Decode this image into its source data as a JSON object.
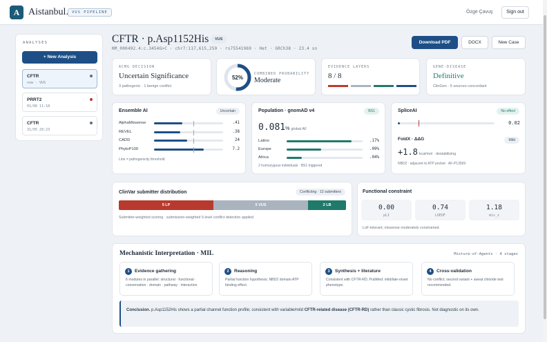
{
  "app": {
    "brand": "Aistanbul.",
    "logo_letter": "A",
    "pipeline_tag": "VUS PIPELINE",
    "user": "Özge Çavuş",
    "signout": "Sign out"
  },
  "sidebar": {
    "title": "ANALYSES",
    "new_button": "+ New Analysis",
    "items": [
      {
        "name": "CFTR",
        "meta": "now · VUS",
        "dot_color": "#5f6f80",
        "active": true
      },
      {
        "name": "PRRT2",
        "meta": "01/06 11:18",
        "dot_color": "#c0392b",
        "active": false
      },
      {
        "name": "CFTR",
        "meta": "31/05 20:23",
        "dot_color": "#5f6f80",
        "active": false
      }
    ]
  },
  "header": {
    "title": "CFTR · p.Asp1152His",
    "badge": "VUS",
    "subtitle": "NM_000492.4:c.3454G>C · chr7:117,615,259 · rs75541969 · Het · GRCh38 · 23.4 sn",
    "buttons": {
      "download_pdf": "Download PDF",
      "docx": "DOCX",
      "new_case": "New Case"
    }
  },
  "summary": {
    "acmg": {
      "label": "ACMG DECISION",
      "value": "Uncertain Significance",
      "note": "3 pathogenic · 1 benign conflict"
    },
    "combined": {
      "percent": 52,
      "percent_label": "52%",
      "label": "COMBINED PROBABILITY",
      "value": "Moderate"
    },
    "evidence": {
      "label": "EVIDENCE LAYERS",
      "value": "8 / 8",
      "segments": [
        "#c0392b",
        "#a9b4bf",
        "#1f7a6b",
        "#1d4f86"
      ]
    },
    "gene_disease": {
      "label": "GENE-DISEASE",
      "value": "Definitive",
      "note": "ClinGen · 5 sources concordant"
    }
  },
  "ensemble": {
    "title": "Ensemble AI",
    "badge": "Uncertain",
    "rows": [
      {
        "name": "AlphaMissense",
        "value": ".41",
        "fill": 0.41
      },
      {
        "name": "REVEL",
        "value": ".38",
        "fill": 0.38
      },
      {
        "name": "CADD",
        "value": "24",
        "fill": 0.48
      },
      {
        "name": "PhyloP100",
        "value": "7.2",
        "fill": 0.72
      }
    ],
    "note": "Line = pathogenicity threshold"
  },
  "population": {
    "title": "Population · gnomAD v4",
    "badge": "BS1",
    "af": "0.081",
    "af_unit": "%",
    "af_label": "global AF",
    "rows": [
      {
        "name": "Latino",
        "value": ".17%",
        "fill": 0.85
      },
      {
        "name": "Europe",
        "value": ".09%",
        "fill": 0.45
      },
      {
        "name": "Africa",
        "value": ".04%",
        "fill": 0.2
      }
    ],
    "note": "2 homozygous individuals · BS1 triggered"
  },
  "splice": {
    "title": "SpliceAI",
    "badge": "No effect",
    "value": "0.02",
    "fill": 0.02,
    "foldx_title": "FoldX · ΔΔG",
    "foldx_badge": "Mild",
    "ddg": "+1.8",
    "ddg_unit": "kcal/mol · destabilizing",
    "ddg_note": "NBD2 · adjacent to ATP pocket · AF-P13569"
  },
  "clinvar": {
    "title": "ClinVar submitter distribution",
    "badge": "Conflicting · 12 submitters",
    "segments": [
      {
        "label": "5 LP",
        "value": 5,
        "color": "#b83a2e"
      },
      {
        "label": "5 VUS",
        "value": 5,
        "color": "#a9b4bf"
      },
      {
        "label": "2 LB",
        "value": 2,
        "color": "#1f7a6b"
      }
    ],
    "note": "Submitter-weighted scoring · submission-weighted 5-level conflict detection applied."
  },
  "constraint": {
    "title": "Functional constraint",
    "stats": [
      {
        "value": "0.00",
        "label": "pLI"
      },
      {
        "value": "0.74",
        "label": "LOEUF"
      },
      {
        "value": "1.18",
        "label": "mis_z"
      }
    ],
    "note": "LoF-tolerant; missense moderately constrained."
  },
  "mechanistic": {
    "title": "Mechanistic Interpretation · MIL",
    "meta": "Mixture-of-Agents · 4 stages",
    "steps": [
      {
        "num": "1",
        "title": "Evidence gathering",
        "desc": "6 modules in parallel: structural · functional · conservation · domain · pathway · interaction"
      },
      {
        "num": "2",
        "title": "Reasoning",
        "desc": "Partial function hypothesis; NBD2 domain ATP binding effect."
      },
      {
        "num": "3",
        "title": "Synthesis + literature",
        "desc": "Consistent with CFTR-RD; PubMed: mild/late-onset phenotype."
      },
      {
        "num": "4",
        "title": "Cross-validation",
        "desc": "No conflict; second variant + sweat chloride test recommended."
      }
    ],
    "conclusion_label": "Conclusion.",
    "conclusion_text_1": "p.Asp1152His shows a partial channel function profile; consistent with variable/mild",
    "conclusion_bold": "CFTR-related disease (CFTR-RD)",
    "conclusion_text_2": "rather than classic cystic fibrosis. Not diagnostic on its own."
  }
}
